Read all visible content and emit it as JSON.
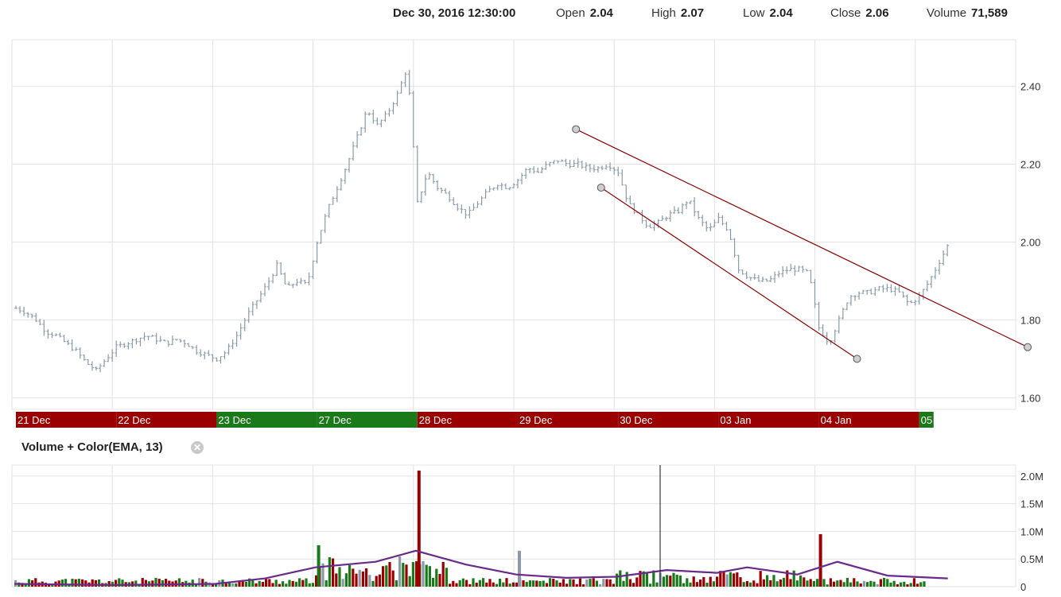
{
  "header": {
    "datetime": "Dec 30, 2016 12:30:00",
    "open_label": "Open",
    "open_value": "2.04",
    "high_label": "High",
    "high_value": "2.07",
    "low_label": "Low",
    "low_value": "2.04",
    "close_label": "Close",
    "close_value": "2.06",
    "volume_label": "Volume",
    "volume_value": "71,589"
  },
  "volume_panel": {
    "title": "Volume + Color(EMA, 13)",
    "close_icon": "close-circle-icon"
  },
  "colors": {
    "up": "#1a7a1a",
    "down": "#9b0000",
    "neutral": "#8a9aaa",
    "ema": "#6a2a8a",
    "trendline": "#8b0000"
  },
  "chart_data": [
    {
      "type": "ohlc",
      "y_ticks": [
        "2.40",
        "2.20",
        "2.00",
        "1.80",
        "1.60"
      ],
      "y_tick_values": [
        2.4,
        2.2,
        2.0,
        1.8,
        1.6
      ],
      "ylim": [
        1.57,
        2.52
      ],
      "grid": true,
      "days": [
        {
          "label": "21 Dec",
          "direction": "down"
        },
        {
          "label": "22 Dec",
          "direction": "down"
        },
        {
          "label": "23 Dec",
          "direction": "up"
        },
        {
          "label": "27 Dec",
          "direction": "up"
        },
        {
          "label": "28 Dec",
          "direction": "down"
        },
        {
          "label": "29 Dec",
          "direction": "down"
        },
        {
          "label": "30 Dec",
          "direction": "down"
        },
        {
          "label": "03 Jan",
          "direction": "down"
        },
        {
          "label": "04 Jan",
          "direction": "down"
        },
        {
          "label": "05",
          "direction": "up",
          "partial": true
        }
      ],
      "price_anchors": [
        [
          0,
          1.83
        ],
        [
          1,
          1.82
        ],
        [
          2,
          1.8
        ],
        [
          3,
          1.77
        ],
        [
          4,
          1.76
        ],
        [
          5,
          1.74
        ],
        [
          6,
          1.72
        ],
        [
          7,
          1.69
        ],
        [
          8,
          1.67
        ],
        [
          9,
          1.7
        ],
        [
          10,
          1.73
        ],
        [
          11,
          1.74
        ],
        [
          12,
          1.75
        ],
        [
          13,
          1.76
        ],
        [
          14,
          1.75
        ],
        [
          15,
          1.74
        ],
        [
          16,
          1.75
        ],
        [
          17,
          1.74
        ],
        [
          18,
          1.72
        ],
        [
          19,
          1.71
        ],
        [
          20,
          1.7
        ],
        [
          21,
          1.72
        ],
        [
          22,
          1.76
        ],
        [
          23,
          1.81
        ],
        [
          24,
          1.85
        ],
        [
          25,
          1.89
        ],
        [
          26,
          1.94
        ],
        [
          27,
          1.88
        ],
        [
          28,
          1.9
        ],
        [
          29,
          1.89
        ],
        [
          30,
          2.0
        ],
        [
          31,
          2.08
        ],
        [
          32,
          2.14
        ],
        [
          33,
          2.2
        ],
        [
          34,
          2.27
        ],
        [
          35,
          2.34
        ],
        [
          36,
          2.3
        ],
        [
          37,
          2.33
        ],
        [
          38,
          2.38
        ],
        [
          39,
          2.45
        ],
        [
          40,
          2.1
        ],
        [
          41,
          2.18
        ],
        [
          42,
          2.14
        ],
        [
          43,
          2.12
        ],
        [
          44,
          2.09
        ],
        [
          45,
          2.07
        ],
        [
          46,
          2.1
        ],
        [
          47,
          2.13
        ],
        [
          48,
          2.15
        ],
        [
          49,
          2.14
        ],
        [
          50,
          2.16
        ],
        [
          51,
          2.19
        ],
        [
          52,
          2.18
        ],
        [
          53,
          2.2
        ],
        [
          54,
          2.21
        ],
        [
          55,
          2.2
        ],
        [
          56,
          2.2
        ],
        [
          57,
          2.19
        ],
        [
          58,
          2.19
        ],
        [
          59,
          2.2
        ],
        [
          60,
          2.18
        ],
        [
          61,
          2.1
        ],
        [
          62,
          2.07
        ],
        [
          63,
          2.04
        ],
        [
          64,
          2.05
        ],
        [
          65,
          2.07
        ],
        [
          66,
          2.08
        ],
        [
          67,
          2.11
        ],
        [
          68,
          2.06
        ],
        [
          69,
          2.03
        ],
        [
          70,
          2.06
        ],
        [
          71,
          2.03
        ],
        [
          72,
          1.93
        ],
        [
          73,
          1.91
        ],
        [
          74,
          1.9
        ],
        [
          75,
          1.9
        ],
        [
          76,
          1.92
        ],
        [
          77,
          1.93
        ],
        [
          78,
          1.93
        ],
        [
          79,
          1.92
        ],
        [
          80,
          1.78
        ],
        [
          81,
          1.74
        ],
        [
          82,
          1.8
        ],
        [
          83,
          1.86
        ],
        [
          84,
          1.87
        ],
        [
          85,
          1.87
        ],
        [
          86,
          1.88
        ],
        [
          87,
          1.88
        ],
        [
          88,
          1.87
        ],
        [
          89,
          1.84
        ],
        [
          90,
          1.86
        ],
        [
          91,
          1.9
        ],
        [
          92,
          1.95
        ],
        [
          93,
          2.0
        ]
      ],
      "trendlines": [
        {
          "from": {
            "x": 55.8,
            "y": 2.29
          },
          "to": {
            "x": 100.8,
            "y": 1.73
          }
        },
        {
          "from": {
            "x": 58.3,
            "y": 2.14
          },
          "to": {
            "x": 83.8,
            "y": 1.7
          }
        }
      ]
    },
    {
      "type": "bar",
      "title": "Volume + Color(EMA, 13)",
      "y_ticks": [
        "2.0M",
        "1.5M",
        "1.0M",
        "0.5M",
        "0"
      ],
      "y_tick_values": [
        2.0,
        1.5,
        1.0,
        0.5,
        0
      ],
      "ylim": [
        0,
        2.2
      ],
      "unit": "M",
      "spike_bars": [
        {
          "day_index": 4,
          "value": 2.1,
          "direction": "down"
        },
        {
          "day_index": 3,
          "value": 0.75,
          "direction": "up"
        },
        {
          "day_index": 5,
          "value": 0.65,
          "direction": "neutral"
        },
        {
          "day_index": 8,
          "value": 0.95,
          "direction": "down"
        }
      ],
      "ema_anchors": [
        [
          0,
          0.05
        ],
        [
          10,
          0.03
        ],
        [
          20,
          0.05
        ],
        [
          25,
          0.15
        ],
        [
          30,
          0.35
        ],
        [
          36,
          0.45
        ],
        [
          40,
          0.65
        ],
        [
          45,
          0.4
        ],
        [
          50,
          0.22
        ],
        [
          55,
          0.16
        ],
        [
          60,
          0.18
        ],
        [
          65,
          0.3
        ],
        [
          70,
          0.25
        ],
        [
          73,
          0.35
        ],
        [
          78,
          0.22
        ],
        [
          82,
          0.45
        ],
        [
          87,
          0.2
        ],
        [
          93,
          0.15
        ]
      ]
    }
  ]
}
